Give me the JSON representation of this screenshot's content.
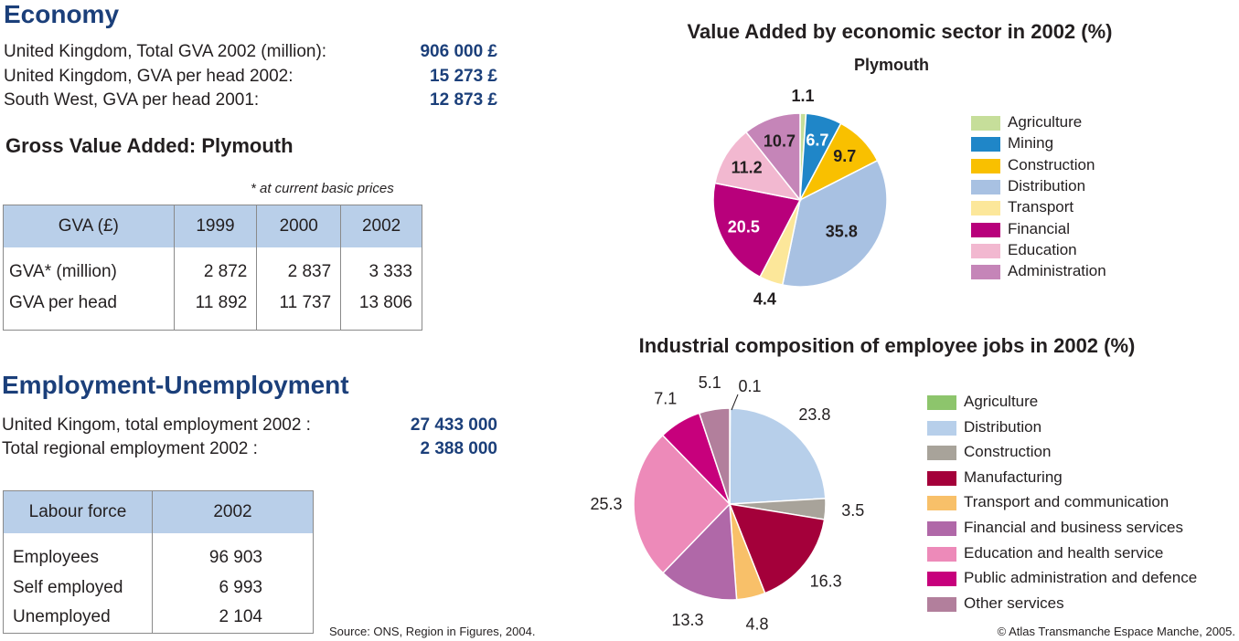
{
  "economy": {
    "title": "Economy",
    "rows": [
      {
        "label": "United Kingdom, Total GVA 2002 (million):",
        "value": "906 000 £"
      },
      {
        "label": "United Kingdom, GVA per head 2002:",
        "value": "15 273 £"
      },
      {
        "label": "South West, GVA per head 2001:",
        "value": "12 873 £"
      }
    ]
  },
  "gva": {
    "title": "Gross Value Added: Plymouth",
    "note": "* at current basic prices",
    "headers": [
      "GVA (£)",
      "1999",
      "2000",
      "2002"
    ],
    "rows": [
      [
        "GVA* (million)",
        "2 872",
        "2 837",
        "3 333"
      ],
      [
        "GVA per head",
        "11 892",
        "11 737",
        "13 806"
      ]
    ]
  },
  "employment": {
    "title": "Employment-Unemployment",
    "rows": [
      {
        "label": "United Kingom, total employment 2002 :",
        "value": "27 433 000"
      },
      {
        "label": "Total regional employment 2002 :",
        "value": "2 388 000"
      }
    ]
  },
  "labour": {
    "headers": [
      "Labour force",
      "2002"
    ],
    "rows": [
      [
        "Employees",
        "96 903"
      ],
      [
        "Self employed",
        "6 993"
      ],
      [
        "Unemployed",
        "2 104"
      ]
    ]
  },
  "source": "Source: ONS, Region in Figures, 2004.",
  "copyright": "© Atlas Transmanche Espace Manche, 2005.",
  "chart_data": [
    {
      "type": "pie",
      "title": "Value Added by economic sector in 2002 (%)",
      "subtitle": "Plymouth",
      "categories": [
        "Agriculture",
        "Mining",
        "Construction",
        "Distribution",
        "Transport",
        "Financial",
        "Education",
        "Administration"
      ],
      "values": [
        1.1,
        6.7,
        9.7,
        35.8,
        4.4,
        20.5,
        11.2,
        10.7
      ],
      "labels": [
        "1.1",
        "6.7",
        "9.7",
        "35.8",
        "4.4",
        "20.5",
        "11.2",
        "10.7"
      ],
      "colors": [
        "#c6de9a",
        "#1f86c8",
        "#f9c000",
        "#a8c1e2",
        "#fce79a",
        "#b8007b",
        "#f2b8d0",
        "#c585b8"
      ],
      "label_colors": [
        "#231f20",
        "#ffffff",
        "#231f20",
        "#231f20",
        "#231f20",
        "#ffffff",
        "#231f20",
        "#231f20"
      ],
      "label_inside": [
        false,
        true,
        true,
        true,
        false,
        true,
        true,
        true
      ],
      "legend_position": "right"
    },
    {
      "type": "pie",
      "title": "Industrial composition of employee jobs in 2002 (%)",
      "categories": [
        "Agriculture",
        "Distribution",
        "Construction",
        "Manufacturing",
        "Transport and communication",
        "Financial and business services",
        "Education and health service",
        "Public administration and defence",
        "Other services"
      ],
      "values": [
        0.1,
        23.8,
        3.5,
        16.3,
        4.8,
        13.3,
        25.3,
        7.1,
        5.1
      ],
      "labels": [
        "0.1",
        "23.8",
        "3.5",
        "16.3",
        "4.8",
        "13.3",
        "25.3",
        "7.1",
        "5.1"
      ],
      "colors": [
        "#8dc56c",
        "#b7cfea",
        "#a8a39a",
        "#a4003a",
        "#f8c069",
        "#b068a8",
        "#ed8ab9",
        "#c7007c",
        "#b27f9c"
      ],
      "legend_position": "right"
    }
  ]
}
